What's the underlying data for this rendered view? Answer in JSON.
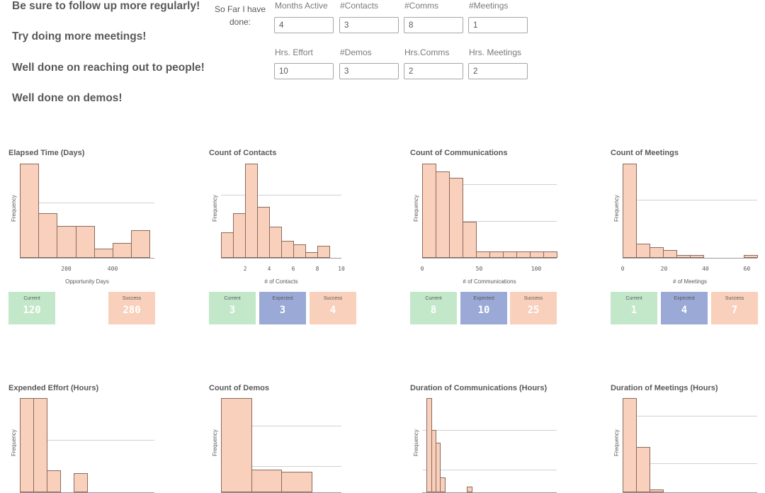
{
  "messages": [
    "Be sure to follow up more regularly!",
    "Try doing more meetings!",
    "Well done on reaching out to people!",
    "Well done on demos!"
  ],
  "form": {
    "prefix": "So Far I have done:",
    "fields": [
      {
        "label": "Months Active",
        "value": "4"
      },
      {
        "label": "#Contacts",
        "value": "3"
      },
      {
        "label": "#Comms",
        "value": "8"
      },
      {
        "label": "#Meetings",
        "value": "1"
      },
      {
        "label": "Hrs. Effort",
        "value": "10"
      },
      {
        "label": "#Demos",
        "value": "3"
      },
      {
        "label": "Hrs.Comms",
        "value": "2"
      },
      {
        "label": "Hrs. Meetings",
        "value": "2"
      }
    ]
  },
  "colors": {
    "bar": "#f9d0bc",
    "current": "#c3e8c9",
    "expected": "#9aa9d6",
    "success": "#f9d0bc"
  },
  "charts": [
    {
      "title": "Elapsed Time (Days)",
      "ylabel": "Frequency",
      "xlabel": "Opportunity Days",
      "xmin": 0,
      "xmax": 580,
      "ticks": [
        200,
        400
      ],
      "bins_start": 0,
      "bin_width": 80,
      "values": [
        100,
        47,
        34,
        34,
        10,
        16,
        29
      ],
      "ref_line": 59,
      "kpis": [
        {
          "label": "Current",
          "value": "120",
          "kind": "current"
        },
        {
          "label": "Success",
          "value": "280",
          "kind": "success"
        }
      ]
    },
    {
      "title": "Count of Contacts",
      "ylabel": "Frequency",
      "xlabel": "# of Contacts",
      "xmin": 0,
      "xmax": 10,
      "ticks": [
        2,
        4,
        6,
        8,
        10
      ],
      "bins_start": 0,
      "bin_width": 1,
      "values": [
        27,
        47,
        100,
        54,
        33,
        18,
        14,
        6,
        13
      ],
      "ref_line": 67,
      "kpis": [
        {
          "label": "Current",
          "value": "3",
          "kind": "current"
        },
        {
          "label": "Expected",
          "value": "3",
          "kind": "expected"
        },
        {
          "label": "Success",
          "value": "4",
          "kind": "success"
        }
      ]
    },
    {
      "title": "Count of Communications",
      "ylabel": "Frequency",
      "xlabel": "# of Communications",
      "xmin": 0,
      "xmax": 118,
      "ticks": [
        0,
        50,
        100
      ],
      "bins_start": 0,
      "bin_width": 11.8,
      "values": [
        100,
        92,
        85,
        38,
        7,
        7,
        7,
        7,
        7,
        7
      ],
      "ref_line": 78,
      "ref_line2": 39,
      "kpis": [
        {
          "label": "Current",
          "value": "8",
          "kind": "current"
        },
        {
          "label": "Expected",
          "value": "10",
          "kind": "expected"
        },
        {
          "label": "Success",
          "value": "25",
          "kind": "success"
        }
      ]
    },
    {
      "title": "Count of Meetings",
      "ylabel": "Frequency",
      "xlabel": "# of Meetings",
      "xmin": 0,
      "xmax": 65,
      "ticks": [
        0,
        20,
        40,
        60
      ],
      "bins_start": 0,
      "bin_width": 6.5,
      "values": [
        100,
        15,
        11,
        8,
        3,
        3,
        0,
        0,
        0,
        3
      ],
      "ref_line": 62,
      "kpis": [
        {
          "label": "Current",
          "value": "1",
          "kind": "current"
        },
        {
          "label": "Expected",
          "value": "4",
          "kind": "expected"
        },
        {
          "label": "Success",
          "value": "7",
          "kind": "success"
        }
      ]
    },
    {
      "title": "Expended Effort (Hours)",
      "ylabel": "Frequency",
      "xlabel": "",
      "xmin": 0,
      "xmax": 10,
      "ticks": [],
      "bins_start": 0,
      "bin_width": 1,
      "values": [
        100,
        100,
        23,
        0,
        20
      ],
      "ref_line": 56,
      "kpis": []
    },
    {
      "title": "Count of Demos",
      "ylabel": "Frequency",
      "xlabel": "",
      "xmin": 0,
      "xmax": 4,
      "ticks": [],
      "bins_start": 0,
      "bin_width": 1,
      "values": [
        100,
        24,
        22
      ],
      "ref_line": 71,
      "ref_line2": 28,
      "kpis": []
    },
    {
      "title": "Duration of Communications (Hours)",
      "ylabel": "Frequency",
      "xlabel": "",
      "xmin": 0,
      "xmax": 30,
      "ticks": [],
      "bins_start": 0,
      "bin_width": 1,
      "values": [
        0,
        100,
        66,
        53,
        16,
        0,
        0,
        0,
        0,
        0,
        6
      ],
      "ref_line": 66,
      "ref_line2": 24,
      "kpis": []
    },
    {
      "title": "Duration of Meetings (Hours)",
      "ylabel": "Frequency",
      "xlabel": "",
      "xmin": 0,
      "xmax": 10,
      "ticks": [],
      "bins_start": 0,
      "bin_width": 1,
      "values": [
        100,
        48,
        3
      ],
      "ref_line": 81,
      "ref_line2": 31,
      "kpis": []
    }
  ],
  "chart_data": [
    {
      "type": "bar",
      "title": "Elapsed Time (Days)",
      "xlabel": "Opportunity Days",
      "ylabel": "Frequency",
      "bin_edges": [
        0,
        80,
        160,
        240,
        320,
        400,
        480,
        560
      ],
      "values": [
        100,
        47,
        34,
        34,
        10,
        16,
        29
      ]
    },
    {
      "type": "bar",
      "title": "Count of Contacts",
      "xlabel": "# of Contacts",
      "ylabel": "Frequency",
      "bin_edges": [
        0,
        1,
        2,
        3,
        4,
        5,
        6,
        7,
        8,
        9
      ],
      "values": [
        27,
        47,
        100,
        54,
        33,
        18,
        14,
        6,
        13
      ]
    },
    {
      "type": "bar",
      "title": "Count of Communications",
      "xlabel": "# of Communications",
      "ylabel": "Frequency",
      "values": [
        100,
        92,
        85,
        38,
        7,
        7,
        7,
        7,
        7,
        7
      ]
    },
    {
      "type": "bar",
      "title": "Count of Meetings",
      "xlabel": "# of Meetings",
      "ylabel": "Frequency",
      "values": [
        100,
        15,
        11,
        8,
        3,
        3,
        0,
        0,
        0,
        3
      ]
    },
    {
      "type": "bar",
      "title": "Expended Effort (Hours)",
      "ylabel": "Frequency",
      "values": [
        100,
        100,
        23,
        0,
        20
      ]
    },
    {
      "type": "bar",
      "title": "Count of Demos",
      "ylabel": "Frequency",
      "values": [
        100,
        24,
        22
      ]
    },
    {
      "type": "bar",
      "title": "Duration of Communications (Hours)",
      "ylabel": "Frequency",
      "values": [
        0,
        100,
        66,
        53,
        16,
        0,
        0,
        0,
        0,
        0,
        6
      ]
    },
    {
      "type": "bar",
      "title": "Duration of Meetings (Hours)",
      "ylabel": "Frequency",
      "values": [
        100,
        48,
        3
      ]
    }
  ]
}
